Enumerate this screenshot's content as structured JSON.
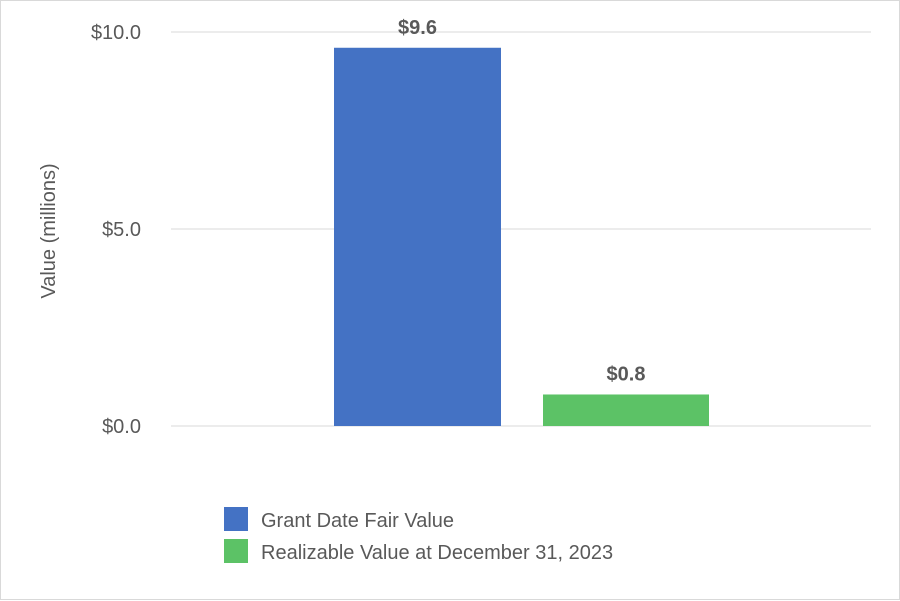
{
  "chart_data": {
    "type": "bar",
    "title": "",
    "xlabel": "",
    "ylabel": "Value (millions)",
    "ylim": [
      0,
      10
    ],
    "yticks": [
      0,
      5,
      10
    ],
    "ytick_labels": [
      "$0.0",
      "$5.0",
      "$10.0"
    ],
    "grid": true,
    "legend_position": "bottom",
    "series": [
      {
        "name": "Grant Date Fair Value",
        "value": 9.6,
        "label": "$9.6",
        "color": "#4472C4"
      },
      {
        "name": "Realizable Value at December 31, 2023",
        "value": 0.8,
        "label": "$0.8",
        "color": "#5CC266"
      }
    ]
  }
}
